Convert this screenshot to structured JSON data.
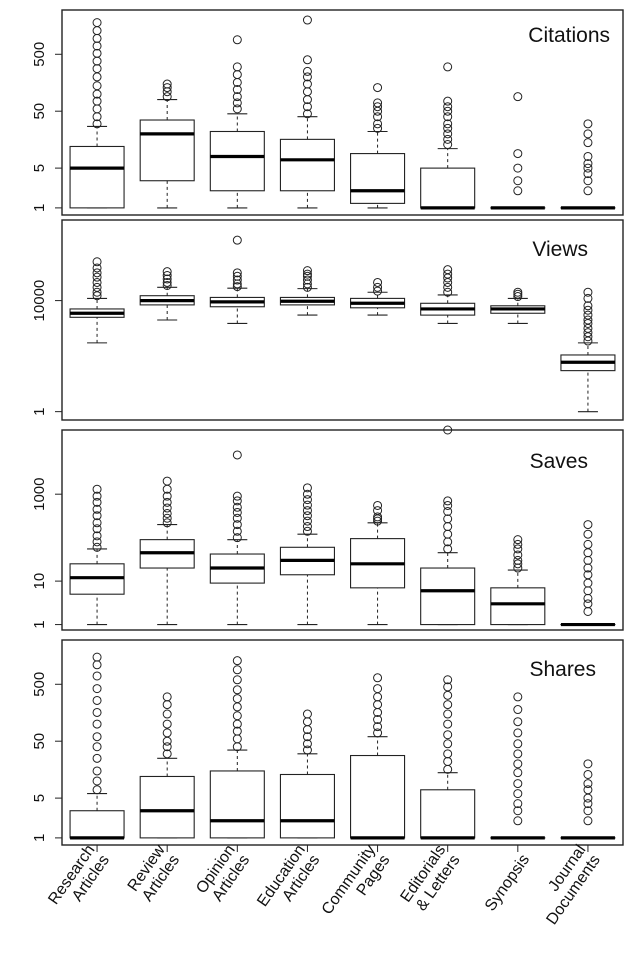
{
  "chart_data": {
    "type": "box",
    "categories": [
      [
        "Research",
        "Articles"
      ],
      [
        "Review",
        "Articles"
      ],
      [
        "Opinion",
        "Articles"
      ],
      [
        "Education",
        "Articles"
      ],
      [
        "Community",
        "Pages"
      ],
      [
        "Editorials",
        "& Letters"
      ],
      [
        "Synopsis"
      ],
      [
        "Journal",
        "Documents"
      ]
    ],
    "panels": [
      {
        "title": "Citations",
        "scale": "log",
        "ylim": [
          0.75,
          3000
        ],
        "ticks": [
          1,
          5,
          50,
          500
        ],
        "tick_labels": [
          "1",
          "5",
          "50",
          "500"
        ],
        "series": [
          {
            "min": 1,
            "q1": 1,
            "median": 5,
            "q3": 12,
            "max": 27,
            "outliers": [
              30,
              40,
              55,
              75,
              100,
              140,
              200,
              280,
              380,
              520,
              700,
              950,
              1300,
              1800
            ]
          },
          {
            "min": 1,
            "q1": 3,
            "median": 20,
            "q3": 35,
            "max": 80,
            "outliers": [
              90,
              110,
              130,
              150
            ]
          },
          {
            "min": 1,
            "q1": 2,
            "median": 8,
            "q3": 22,
            "max": 45,
            "outliers": [
              55,
              70,
              90,
              120,
              160,
              220,
              300,
              900
            ]
          },
          {
            "min": 1,
            "q1": 2,
            "median": 7,
            "q3": 16,
            "max": 40,
            "outliers": [
              45,
              60,
              80,
              110,
              150,
              200,
              250,
              400,
              2000
            ]
          },
          {
            "min": 1,
            "q1": 1.2,
            "median": 2,
            "q3": 9,
            "max": 22,
            "outliers": [
              25,
              30,
              40,
              50,
              60,
              70,
              130
            ]
          },
          {
            "min": 1,
            "q1": 1,
            "median": 1,
            "q3": 5,
            "max": 11,
            "outliers": [
              13,
              16,
              20,
              25,
              30,
              40,
              50,
              60,
              75,
              300
            ]
          },
          {
            "min": 1,
            "q1": 1,
            "median": 1,
            "q3": 1,
            "max": 1,
            "outliers": [
              2,
              3,
              5,
              9,
              90
            ]
          },
          {
            "min": 1,
            "q1": 1,
            "median": 1,
            "q3": 1,
            "max": 1,
            "outliers": [
              2,
              3,
              4,
              5,
              6,
              8,
              14,
              20,
              30
            ]
          }
        ]
      },
      {
        "title": "Views",
        "scale": "log",
        "ylim": [
          0.5,
          8000000
        ],
        "ticks": [
          1,
          10000
        ],
        "tick_labels": [
          "1",
          "10000"
        ],
        "series": [
          {
            "min": 300,
            "q1": 2500,
            "median": 3500,
            "q3": 5000,
            "max": 12000,
            "outliers": [
              15000,
              20000,
              30000,
              45000,
              70000,
              100000,
              150000,
              250000
            ]
          },
          {
            "min": 2000,
            "q1": 7000,
            "median": 10000,
            "q3": 15000,
            "max": 30000,
            "outliers": [
              35000,
              45000,
              60000,
              80000,
              110000
            ]
          },
          {
            "min": 1500,
            "q1": 6000,
            "median": 9000,
            "q3": 13000,
            "max": 28000,
            "outliers": [
              32000,
              40000,
              55000,
              75000,
              100000,
              1500000
            ]
          },
          {
            "min": 3000,
            "q1": 7000,
            "median": 9500,
            "q3": 13000,
            "max": 27000,
            "outliers": [
              30000,
              40000,
              55000,
              75000,
              90000,
              120000
            ]
          },
          {
            "min": 3000,
            "q1": 5500,
            "median": 8000,
            "q3": 12000,
            "max": 20000,
            "outliers": [
              22000,
              30000,
              45000
            ]
          },
          {
            "min": 1500,
            "q1": 3000,
            "median": 5000,
            "q3": 8000,
            "max": 16000,
            "outliers": [
              20000,
              30000,
              45000,
              65000,
              90000,
              130000
            ]
          },
          {
            "min": 1500,
            "q1": 3500,
            "median": 5000,
            "q3": 6500,
            "max": 12000,
            "outliers": [
              14000,
              17000,
              20000
            ]
          },
          {
            "min": 1,
            "q1": 30,
            "median": 60,
            "q3": 110,
            "max": 300,
            "outliers": [
              350,
              500,
              700,
              1000,
              1500,
              2000,
              3000,
              4500,
              6500,
              12000,
              20000
            ]
          }
        ]
      },
      {
        "title": "Saves",
        "scale": "log",
        "ylim": [
          0.75,
          30000
        ],
        "ticks": [
          1,
          10,
          1000
        ],
        "tick_labels": [
          "1",
          "10",
          "1000"
        ],
        "series": [
          {
            "min": 1,
            "q1": 5,
            "median": 12,
            "q3": 25,
            "max": 55,
            "outliers": [
              60,
              80,
              110,
              160,
              220,
              320,
              450,
              650,
              900,
              1300
            ]
          },
          {
            "min": 1,
            "q1": 20,
            "median": 45,
            "q3": 90,
            "max": 200,
            "outliers": [
              220,
              280,
              360,
              480,
              650,
              900,
              1300,
              2000
            ]
          },
          {
            "min": 1,
            "q1": 9,
            "median": 20,
            "q3": 42,
            "max": 90,
            "outliers": [
              100,
              140,
              200,
              280,
              380,
              500,
              700,
              900,
              8000
            ]
          },
          {
            "min": 1,
            "q1": 14,
            "median": 30,
            "q3": 60,
            "max": 120,
            "outliers": [
              140,
              180,
              240,
              320,
              420,
              560,
              750,
              1000,
              1400
            ]
          },
          {
            "min": 1,
            "q1": 7,
            "median": 25,
            "q3": 95,
            "max": 220,
            "outliers": [
              240,
              270,
              300,
              420,
              550
            ]
          },
          {
            "min": 1,
            "q1": 1,
            "median": 6,
            "q3": 20,
            "max": 45,
            "outliers": [
              55,
              80,
              120,
              180,
              270,
              400,
              550,
              700,
              30000
            ]
          },
          {
            "min": 1,
            "q1": 1,
            "median": 3,
            "q3": 7,
            "max": 18,
            "outliers": [
              20,
              25,
              30,
              40,
              55,
              70,
              90
            ]
          },
          {
            "min": 1,
            "q1": 1,
            "median": 1,
            "q3": 1,
            "max": 1,
            "outliers": [
              2,
              3,
              4,
              6,
              9,
              14,
              20,
              30,
              45,
              70,
              120,
              200
            ]
          }
        ]
      },
      {
        "title": "Shares",
        "scale": "log",
        "ylim": [
          0.75,
          3000
        ],
        "ticks": [
          1,
          5,
          50,
          500
        ],
        "tick_labels": [
          "1",
          "5",
          "50",
          "500"
        ],
        "series": [
          {
            "min": 1,
            "q1": 1,
            "median": 1,
            "q3": 3,
            "max": 6,
            "outliers": [
              7,
              10,
              15,
              25,
              40,
              60,
              100,
              160,
              260,
              420,
              700,
              1100,
              1500
            ]
          },
          {
            "min": 1,
            "q1": 1,
            "median": 3,
            "q3": 12,
            "max": 25,
            "outliers": [
              30,
              40,
              50,
              70,
              100,
              150,
              220,
              300
            ]
          },
          {
            "min": 1,
            "q1": 1,
            "median": 2,
            "q3": 15,
            "max": 35,
            "outliers": [
              40,
              55,
              75,
              100,
              140,
              200,
              280,
              400,
              600,
              900,
              1300
            ]
          },
          {
            "min": 1,
            "q1": 1,
            "median": 2,
            "q3": 13,
            "max": 30,
            "outliers": [
              35,
              45,
              60,
              80,
              110,
              150
            ]
          },
          {
            "min": 1,
            "q1": 1,
            "median": 1,
            "q3": 28,
            "max": 60,
            "outliers": [
              70,
              90,
              120,
              160,
              220,
              300,
              420,
              650
            ]
          },
          {
            "min": 1,
            "q1": 1,
            "median": 1,
            "q3": 7,
            "max": 14,
            "outliers": [
              16,
              22,
              30,
              45,
              65,
              100,
              150,
              220,
              320,
              450,
              600
            ]
          },
          {
            "min": 1,
            "q1": 1,
            "median": 1,
            "q3": 1,
            "max": 1,
            "outliers": [
              2,
              3,
              4,
              6,
              9,
              14,
              20,
              30,
              45,
              70,
              110,
              180,
              300
            ]
          },
          {
            "min": 1,
            "q1": 1,
            "median": 1,
            "q3": 1,
            "max": 1,
            "outliers": [
              2,
              3,
              4,
              5,
              7,
              9,
              13,
              20
            ]
          }
        ]
      }
    ]
  }
}
